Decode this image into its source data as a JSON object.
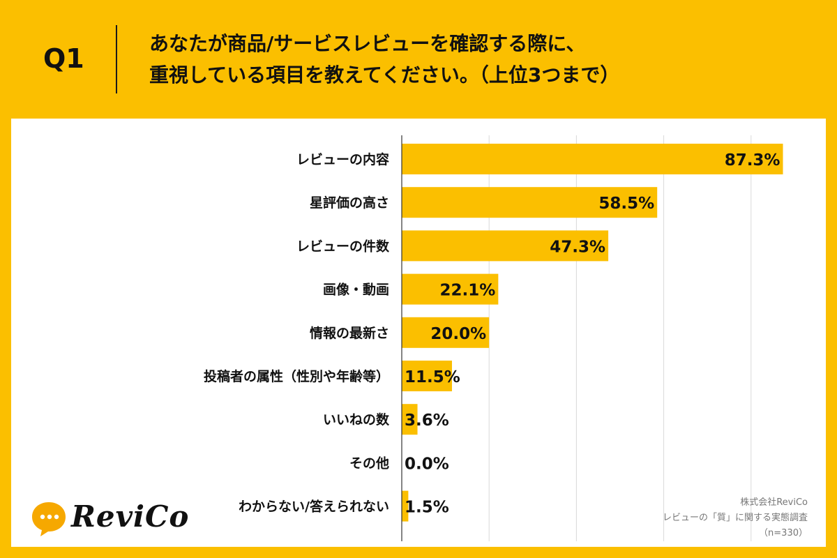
{
  "header": {
    "question_id": "Q1",
    "question_line1": "あなたが商品/サービスレビューを確認する際に、",
    "question_line2": "重視している項目を教えてください。（上位3つまで）"
  },
  "chart_data": {
    "type": "bar",
    "orientation": "horizontal",
    "categories": [
      "レビューの内容",
      "星評価の高さ",
      "レビューの件数",
      "画像・動画",
      "情報の最新さ",
      "投稿者の属性（性別や年齢等）",
      "いいねの数",
      "その他",
      "わからない/答えられない"
    ],
    "values": [
      87.3,
      58.5,
      47.3,
      22.1,
      20.0,
      11.5,
      3.6,
      0.0,
      1.5
    ],
    "value_labels": [
      "87.3%",
      "58.5%",
      "47.3%",
      "22.1%",
      "20.0%",
      "11.5%",
      "3.6%",
      "0.0%",
      "1.5%"
    ],
    "xlim": [
      0,
      100
    ],
    "grid": true,
    "bar_color": "#FBBF00"
  },
  "logo": {
    "text": "ReviCo"
  },
  "source": {
    "company": "株式会社ReviCo",
    "survey": "レビューの「質」に関する実態調査",
    "sample": "（n=330）"
  },
  "colors": {
    "background": "#FBBF00",
    "panel": "#FFFFFF",
    "grid": "#D9D9D9",
    "text": "#111111"
  }
}
